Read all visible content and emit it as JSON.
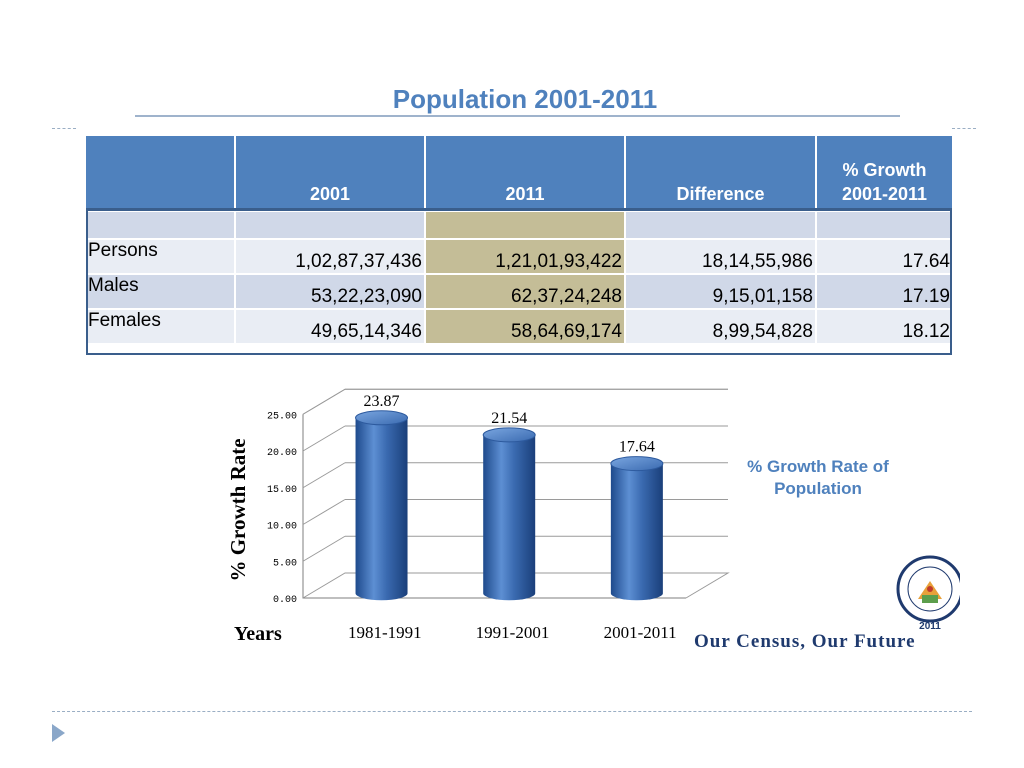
{
  "slide": {
    "title": "Population 2001-2011",
    "legend": "% Growth Rate of Population",
    "tagline": "Our Census, Our Future",
    "logo_year": "2011"
  },
  "table": {
    "headers": [
      "",
      "2001",
      "2011",
      "Difference",
      "% Growth 2001-2011"
    ],
    "rows": [
      {
        "label": "Persons",
        "y2001": "1,02,87,37,436",
        "y2011": "1,21,01,93,422",
        "difference": "18,14,55,986",
        "growth": "17.64"
      },
      {
        "label": "Males",
        "y2001": "53,22,23,090",
        "y2011": "62,37,24,248",
        "difference": "9,15,01,158",
        "growth": "17.19"
      },
      {
        "label": "Females",
        "y2001": "49,65,14,346",
        "y2011": "58,64,69,174",
        "difference": "8,99,54,828",
        "growth": "18.12"
      }
    ]
  },
  "chart_data": {
    "type": "bar",
    "categories": [
      "1981-1991",
      "1991-2001",
      "2001-2011"
    ],
    "values": [
      23.87,
      21.54,
      17.64
    ],
    "value_labels": [
      "23.87",
      "21.54",
      "17.64"
    ],
    "ylabel": "% Growth Rate",
    "xlabel": "Years",
    "ylim": [
      0,
      25
    ],
    "yticks": [
      "0.00",
      "5.00",
      "10.00",
      "15.00",
      "20.00",
      "25.00"
    ],
    "grid": true,
    "style": "3d-cylinder",
    "bar_color": "#3a6ab0"
  }
}
